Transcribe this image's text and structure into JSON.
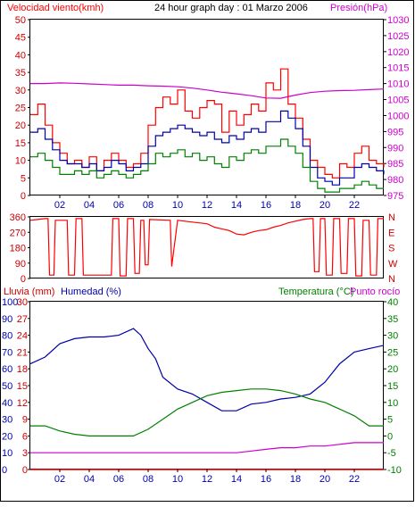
{
  "header": {
    "left": "Velocidad viento(kmh)",
    "center": "24 hour graph day : 01 Marzo 2006",
    "right": "Presión(hPa)"
  },
  "bottom_header": {
    "rain": "Lluvia (mm)",
    "humidity": "Humedad (%)",
    "temperature": "Temperatura (°C)",
    "dewpoint": "Punto rocío"
  },
  "colors": {
    "frame": "#000000",
    "wind_gust": "#ff0000",
    "wind_avg": "#0000aa",
    "wind_min": "#008000",
    "pressure": "#cc00cc",
    "direction": "#ff0000",
    "humidity": "#0000aa",
    "temperature": "#008000",
    "dewpoint": "#cc00cc",
    "rain": "#ff0000",
    "wind_axis": "#cc0000",
    "pressure_axis": "#cc00cc",
    "rain_axis": "#cc0000",
    "humidity_axis": "#0000aa",
    "temp_axis": "#008000"
  },
  "chart_data": [
    {
      "type": "line",
      "panel": "wind_pressure",
      "title": "24 hour graph day : 01 Marzo 2006",
      "x_ticks": [
        "02",
        "04",
        "06",
        "08",
        "10",
        "12",
        "14",
        "16",
        "18",
        "20",
        "22"
      ],
      "x_tick_hours": [
        2,
        4,
        6,
        8,
        10,
        12,
        14,
        16,
        18,
        20,
        22
      ],
      "xlim": [
        0,
        24
      ],
      "ylim_left": [
        0,
        50
      ],
      "yticks_left": [
        "0",
        "5",
        "10",
        "15",
        "20",
        "25",
        "30",
        "35",
        "40",
        "45",
        "50"
      ],
      "ylim_right": [
        975,
        1030
      ],
      "yticks_right": [
        "975",
        "980",
        "985",
        "990",
        "995",
        "1000",
        "1005",
        "1010",
        "1015",
        "1020",
        "1025",
        "1030"
      ],
      "ylabel_left": "Velocidad viento(kmh)",
      "ylabel_right": "Presión(hPa)",
      "series": [
        {
          "name": "Presión",
          "axis": "right",
          "x": [
            0,
            1,
            2,
            3,
            4,
            5,
            6,
            7,
            8,
            9,
            10,
            11,
            12,
            13,
            14,
            15,
            16,
            17,
            18,
            19,
            20,
            21,
            22,
            23,
            24
          ],
          "values": [
            1010,
            1010,
            1010.2,
            1010.1,
            1009.9,
            1009.7,
            1009.5,
            1009.5,
            1009.3,
            1009.2,
            1009,
            1008.6,
            1008,
            1007.3,
            1006.8,
            1006.2,
            1005.5,
            1005.4,
            1006.4,
            1007.2,
            1007.6,
            1007.8,
            1007.9,
            1008.1,
            1008.3
          ]
        },
        {
          "axis": "left",
          "x": [
            0,
            0.5,
            1,
            1.5,
            2,
            2.5,
            3,
            3.5,
            4,
            4.5,
            5,
            5.5,
            6,
            6.5,
            7,
            7.5,
            8,
            8.5,
            9,
            9.5,
            10,
            10.5,
            11,
            11.5,
            12,
            12.5,
            13,
            13.5,
            14,
            14.5,
            15,
            15.5,
            16,
            16.5,
            17,
            17.5,
            18,
            18.5,
            19,
            19.5,
            20,
            20.5,
            21,
            21.5,
            22,
            22.5,
            23,
            23.5,
            24
          ],
          "values": [
            23,
            26,
            20,
            15,
            12,
            9,
            10,
            8,
            11,
            7,
            10,
            12,
            10,
            8,
            9,
            12,
            20,
            25,
            28,
            26,
            30,
            24,
            22,
            25,
            27,
            26,
            18,
            24,
            20,
            23,
            26,
            24,
            32,
            30,
            36,
            26,
            22,
            16,
            10,
            8,
            6,
            5,
            9,
            8,
            12,
            14,
            10,
            9,
            8
          ]
        },
        {
          "axis": "left",
          "x": [
            0,
            0.5,
            1,
            1.5,
            2,
            2.5,
            3,
            3.5,
            4,
            4.5,
            5,
            5.5,
            6,
            6.5,
            7,
            7.5,
            8,
            8.5,
            9,
            9.5,
            10,
            10.5,
            11,
            11.5,
            12,
            12.5,
            13,
            13.5,
            14,
            14.5,
            15,
            15.5,
            16,
            16.5,
            17,
            17.5,
            18,
            18.5,
            19,
            19.5,
            20,
            20.5,
            21,
            21.5,
            22,
            22.5,
            23,
            23.5,
            24
          ],
          "values": [
            18,
            19,
            16,
            13,
            10,
            9,
            9,
            8,
            9,
            7,
            8,
            10,
            9,
            7,
            8,
            9,
            14,
            17,
            18,
            19,
            20,
            19,
            18,
            17,
            18,
            16,
            15,
            17,
            16,
            18,
            19,
            18,
            21,
            21,
            24,
            22,
            19,
            14,
            8,
            5,
            4,
            3,
            5,
            5,
            8,
            9,
            8,
            7,
            6
          ]
        },
        {
          "axis": "left",
          "x": [
            0,
            0.5,
            1,
            1.5,
            2,
            2.5,
            3,
            3.5,
            4,
            4.5,
            5,
            5.5,
            6,
            6.5,
            7,
            7.5,
            8,
            8.5,
            9,
            9.5,
            10,
            10.5,
            11,
            11.5,
            12,
            12.5,
            13,
            13.5,
            14,
            14.5,
            15,
            15.5,
            16,
            16.5,
            17,
            17.5,
            18,
            18.5,
            19,
            19.5,
            20,
            20.5,
            21,
            21.5,
            22,
            22.5,
            23,
            23.5,
            24
          ],
          "values": [
            11,
            12,
            10,
            8,
            6,
            6,
            7,
            6,
            7,
            5,
            6,
            7,
            6,
            5,
            6,
            7,
            9,
            12,
            11,
            12,
            13,
            11,
            12,
            10,
            11,
            9,
            8,
            11,
            10,
            12,
            13,
            12,
            14,
            14,
            16,
            14,
            12,
            8,
            4,
            2,
            1,
            1,
            2,
            2,
            3,
            4,
            3,
            2,
            2
          ]
        }
      ]
    },
    {
      "type": "line",
      "panel": "wind_direction",
      "xlim": [
        0,
        24
      ],
      "ylim_left": [
        0,
        360
      ],
      "yticks_left": [
        "0",
        "90",
        "180",
        "270",
        "360"
      ],
      "yticks_right": [
        "N",
        "E",
        "S",
        "W",
        "N"
      ],
      "series": [
        {
          "axis": "left",
          "x": [
            0,
            0.5,
            1,
            1.2,
            1.3,
            1.6,
            1.7,
            2.5,
            2.6,
            3.0,
            3.1,
            3.5,
            3.6,
            5.5,
            5.6,
            6.0,
            6.1,
            6.5,
            6.6,
            7.0,
            7.1,
            7.4,
            7.5,
            7.7,
            7.8,
            8.0,
            8.1,
            9.5,
            9.6,
            10,
            11,
            12,
            12.5,
            13,
            13.5,
            14,
            14.5,
            15,
            15.5,
            16,
            16.5,
            17,
            17.5,
            18,
            18.5,
            19,
            19.2,
            19.3,
            19.6,
            19.7,
            20,
            20.1,
            20.5,
            20.6,
            21,
            21.1,
            21.5,
            21.6,
            22,
            22.1,
            22.5,
            22.6,
            23,
            23.1,
            23.5,
            23.6,
            24
          ],
          "values": [
            340,
            345,
            350,
            350,
            20,
            20,
            340,
            340,
            20,
            20,
            350,
            350,
            20,
            20,
            350,
            350,
            15,
            15,
            350,
            350,
            30,
            30,
            340,
            340,
            80,
            80,
            345,
            340,
            70,
            340,
            330,
            320,
            300,
            290,
            280,
            260,
            255,
            270,
            280,
            285,
            300,
            310,
            325,
            335,
            345,
            350,
            350,
            40,
            40,
            350,
            350,
            20,
            20,
            350,
            350,
            30,
            30,
            350,
            350,
            15,
            15,
            340,
            340,
            20,
            20,
            350,
            350
          ]
        }
      ]
    },
    {
      "type": "line",
      "panel": "humidity_temperature",
      "xlim": [
        0,
        24
      ],
      "ylim_rain": [
        0,
        30
      ],
      "yticks_rain": [
        "0",
        "3",
        "6",
        "9",
        "12",
        "15",
        "18",
        "21",
        "24",
        "27",
        "30"
      ],
      "ylim_humidity": [
        0,
        100
      ],
      "yticks_humidity": [
        "0",
        "10",
        "20",
        "30",
        "40",
        "50",
        "60",
        "70",
        "80",
        "90",
        "100"
      ],
      "ylim_temperature": [
        -10,
        40
      ],
      "yticks_temperature": [
        "-10",
        "-5",
        "0",
        "5",
        "10",
        "15",
        "20",
        "25",
        "30",
        "35",
        "40"
      ],
      "series": [
        {
          "name": "Humedad (%)",
          "axis": "humidity",
          "x": [
            0,
            1,
            2,
            3,
            4,
            5,
            6,
            7,
            7.5,
            8,
            8.5,
            9,
            10,
            11,
            12,
            13,
            14,
            15,
            16,
            17,
            18,
            19,
            20,
            21,
            22,
            23,
            24
          ],
          "values": [
            63,
            67,
            75,
            78,
            79,
            79,
            80,
            84,
            80,
            72,
            66,
            55,
            48,
            45,
            40,
            35,
            35,
            39,
            40,
            42,
            43,
            45,
            52,
            63,
            70,
            72,
            74
          ]
        },
        {
          "name": "Temperatura (°C)",
          "axis": "temperature",
          "x": [
            0,
            1,
            2,
            3,
            4,
            5,
            6,
            7,
            8,
            9,
            10,
            11,
            12,
            13,
            14,
            15,
            16,
            17,
            18,
            19,
            20,
            21,
            22,
            23,
            24
          ],
          "values": [
            3,
            3,
            1.5,
            0.5,
            0,
            0,
            0,
            0,
            2,
            5,
            8,
            10,
            12,
            13,
            13.5,
            14,
            14,
            13.5,
            12.5,
            11,
            10,
            8,
            6,
            3,
            3
          ]
        },
        {
          "name": "Punto rocío",
          "axis": "temperature",
          "x": [
            0,
            1,
            2,
            3,
            4,
            5,
            6,
            7,
            8,
            9,
            10,
            11,
            12,
            13,
            14,
            15,
            16,
            17,
            18,
            19,
            20,
            21,
            22,
            23,
            24
          ],
          "values": [
            -5,
            -5,
            -5,
            -5,
            -5,
            -5,
            -5,
            -5,
            -5,
            -5,
            -5,
            -5,
            -5,
            -5,
            -5,
            -4.5,
            -4,
            -3.5,
            -3.5,
            -3,
            -3,
            -2.5,
            -2,
            -2,
            -2
          ]
        },
        {
          "name": "Lluvia (mm)",
          "axis": "rain",
          "x": [
            0,
            24
          ],
          "values": [
            0,
            0
          ]
        }
      ]
    }
  ]
}
